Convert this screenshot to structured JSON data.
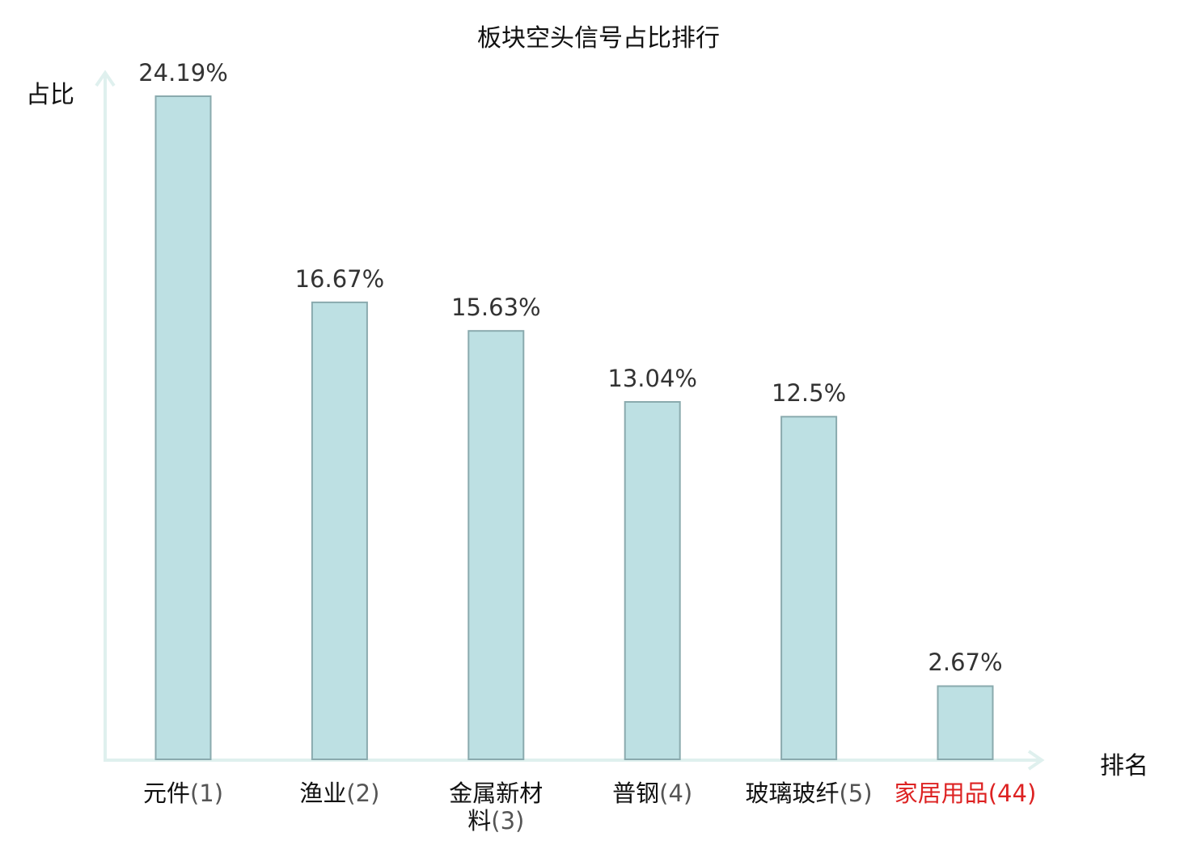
{
  "chart_data": {
    "type": "bar",
    "title": "板块空头信号占比排行",
    "ylabel": "占比",
    "xlabel": "排名",
    "ylim": [
      0,
      25
    ],
    "grid": false,
    "categories": [
      {
        "name": "元件",
        "rank": "(1)",
        "highlight": false
      },
      {
        "name": "渔业",
        "rank": "(2)",
        "highlight": false
      },
      {
        "name": "金属新材料",
        "name_line1": "金属新材",
        "name_line2": "料",
        "rank": "(3)",
        "highlight": false
      },
      {
        "name": "普钢",
        "rank": "(4)",
        "highlight": false
      },
      {
        "name": "玻璃玻纤",
        "rank": "(5)",
        "highlight": false
      },
      {
        "name": "家居用品",
        "rank": "(44)",
        "highlight": true
      }
    ],
    "values": [
      24.19,
      16.67,
      15.63,
      13.04,
      12.5,
      2.67
    ],
    "value_labels": [
      "24.19%",
      "16.67%",
      "15.63%",
      "13.04%",
      "12.5%",
      "2.67%"
    ],
    "colors": {
      "bar_fill": "#bde0e3",
      "bar_stroke": "#8aaaae",
      "axis": "#dff0ee",
      "highlight": "#dd2222"
    }
  }
}
